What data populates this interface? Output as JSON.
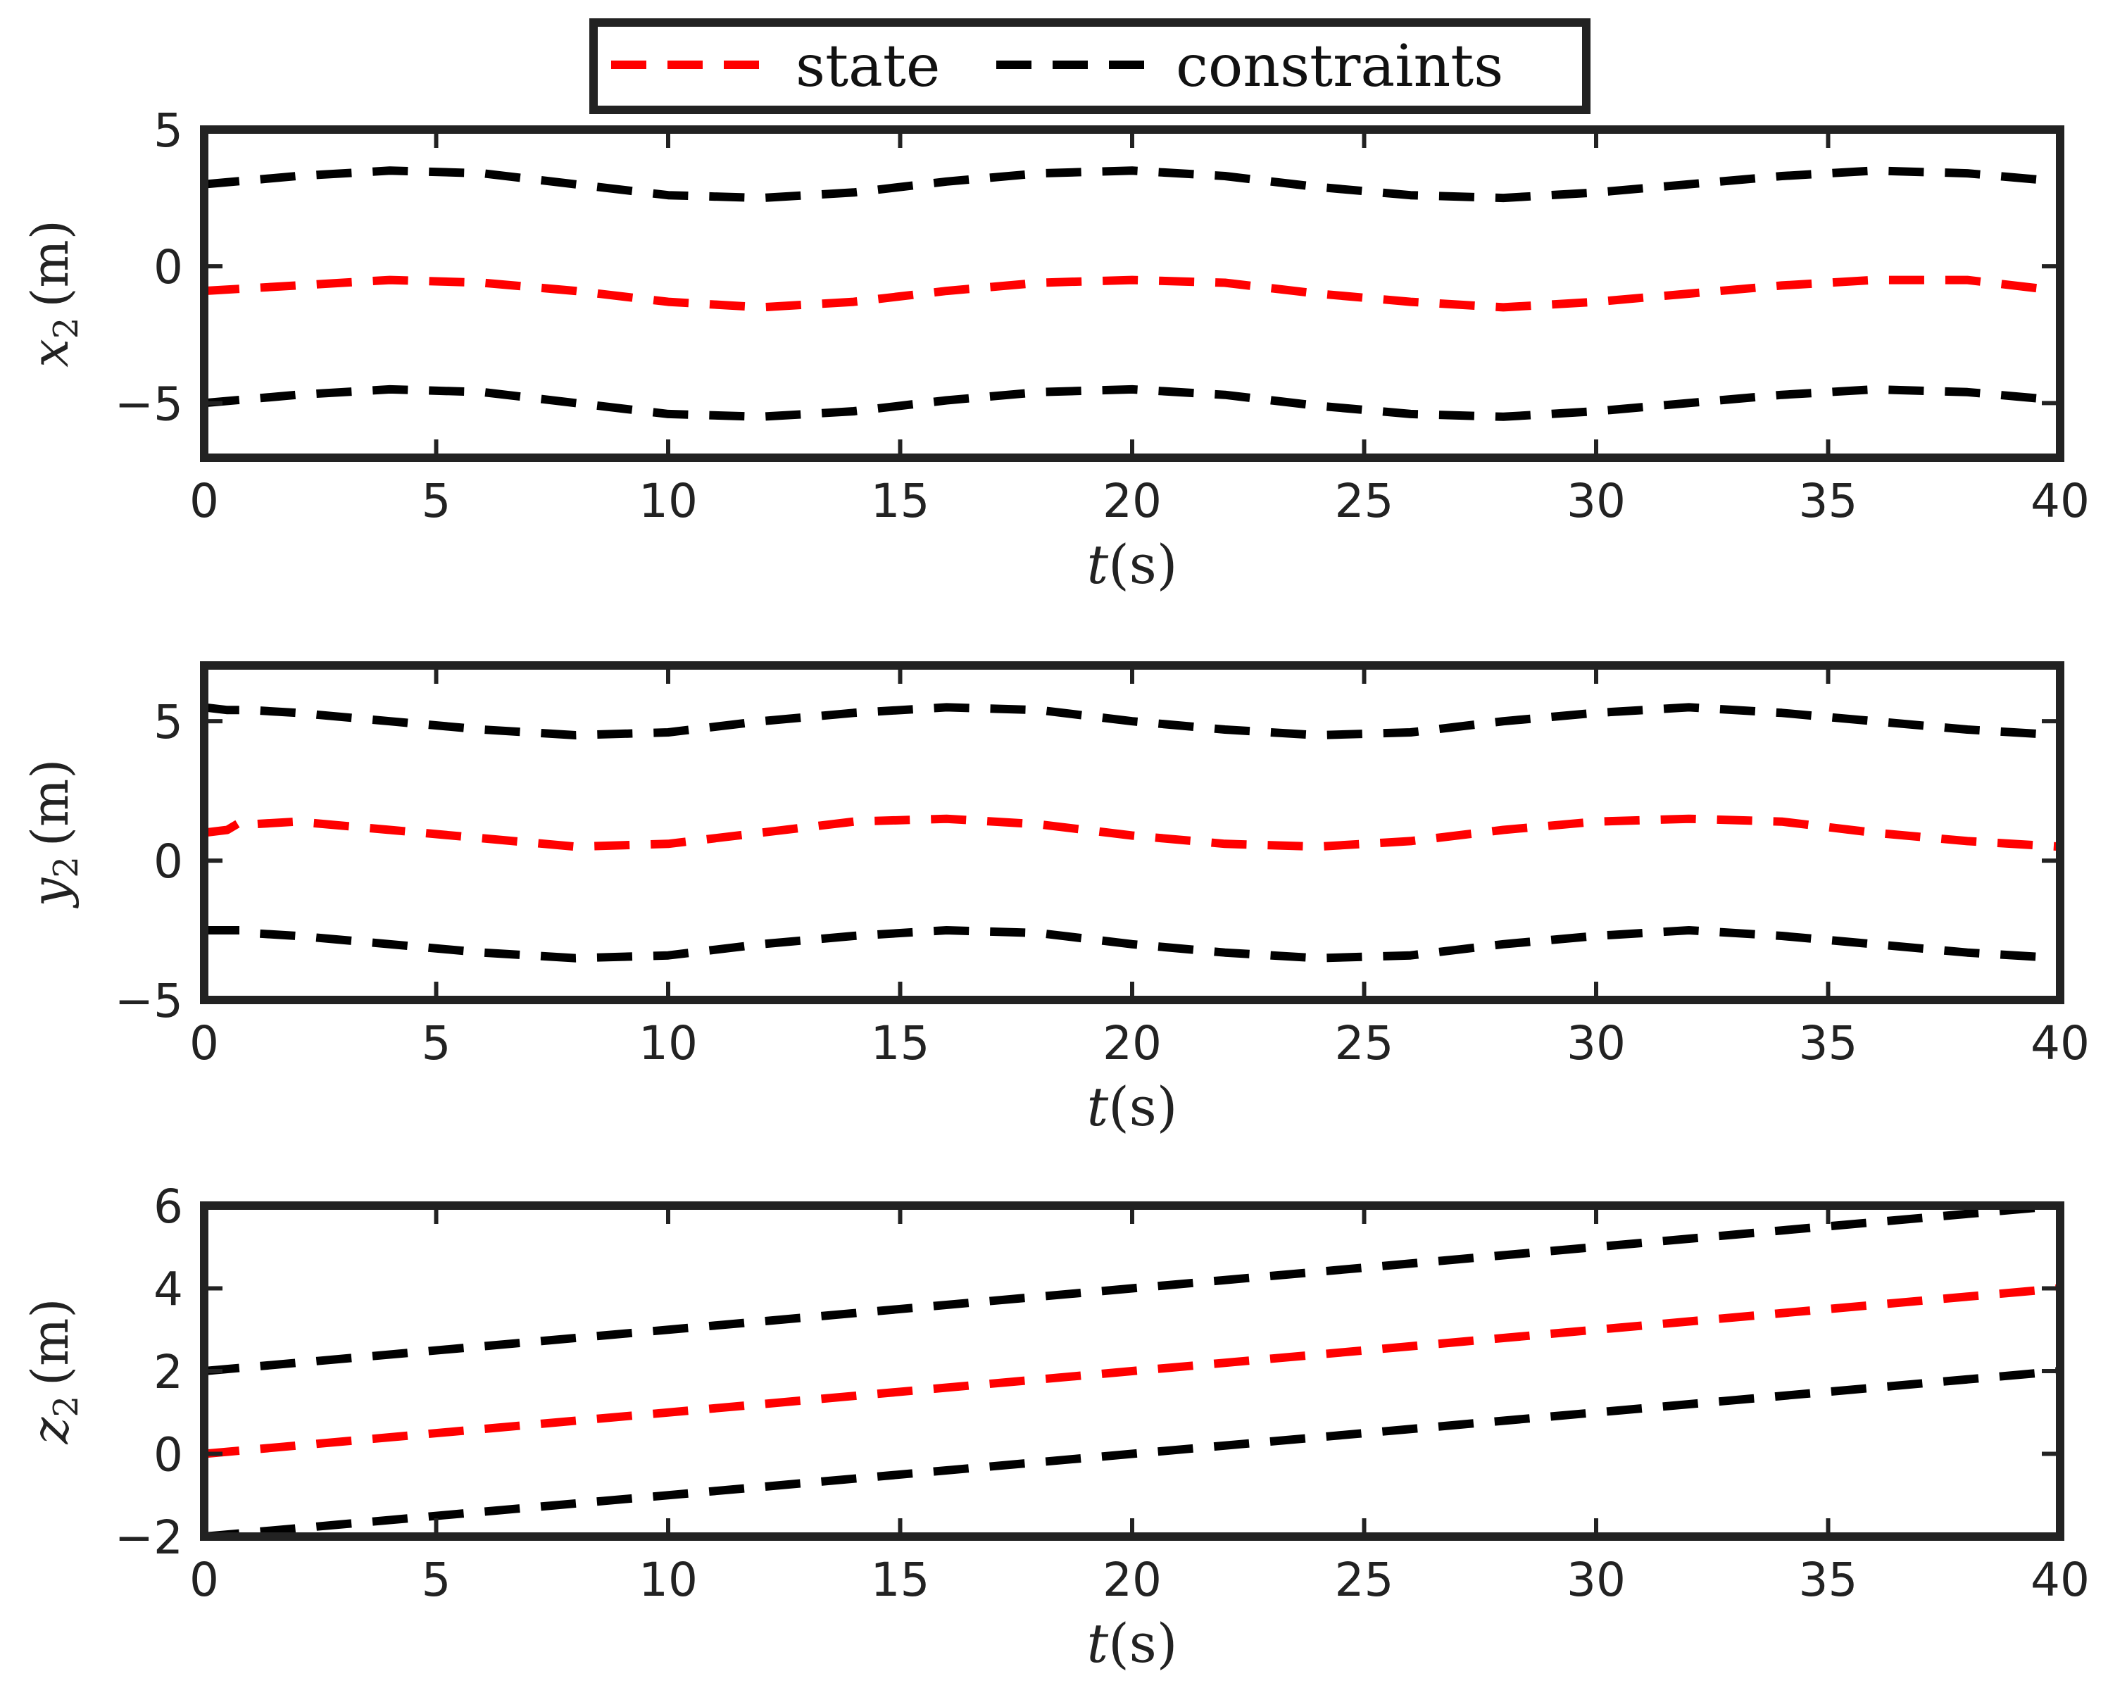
{
  "legend": {
    "state_label": "state",
    "constraints_label": "constraints",
    "state_color": "#ff0000",
    "constraints_color": "#000000"
  },
  "chart_data": [
    {
      "type": "line",
      "ylabel_var": "x",
      "ylabel_sub": "2",
      "ylabel_unit": "(m)",
      "xlabel_var": "t",
      "xlabel_unit": "(s)",
      "xlim": [
        0,
        40
      ],
      "ylim": [
        -7,
        5
      ],
      "xticks": [
        0,
        5,
        10,
        15,
        20,
        25,
        30,
        35,
        40
      ],
      "yticks": [
        -5,
        0,
        5
      ],
      "ytick_labels": [
        "−5",
        "0",
        "5"
      ],
      "x": [
        0,
        2,
        4,
        6,
        8,
        10,
        12,
        14,
        16,
        18,
        20,
        22,
        24,
        26,
        28,
        30,
        32,
        34,
        36,
        38,
        40
      ],
      "series": [
        {
          "name": "state",
          "values": [
            -0.9,
            -0.7,
            -0.5,
            -0.6,
            -0.9,
            -1.3,
            -1.5,
            -1.3,
            -0.9,
            -0.6,
            -0.5,
            -0.6,
            -1.0,
            -1.3,
            -1.5,
            -1.3,
            -1.0,
            -0.7,
            -0.5,
            -0.5,
            -0.9
          ]
        },
        {
          "name": "constraints",
          "values": [
            3.0,
            3.3,
            3.5,
            3.4,
            3.0,
            2.6,
            2.5,
            2.7,
            3.1,
            3.4,
            3.5,
            3.3,
            2.9,
            2.6,
            2.5,
            2.7,
            3.0,
            3.3,
            3.5,
            3.4,
            3.1
          ]
        },
        {
          "name": "constraints",
          "values": [
            -5.0,
            -4.7,
            -4.5,
            -4.6,
            -5.0,
            -5.4,
            -5.5,
            -5.3,
            -4.9,
            -4.6,
            -4.5,
            -4.7,
            -5.1,
            -5.4,
            -5.5,
            -5.3,
            -5.0,
            -4.7,
            -4.5,
            -4.6,
            -4.9
          ]
        }
      ]
    },
    {
      "type": "line",
      "ylabel_var": "y",
      "ylabel_sub": "2",
      "ylabel_unit": "(m)",
      "xlabel_var": "t",
      "xlabel_unit": "(s)",
      "xlim": [
        0,
        40
      ],
      "ylim": [
        -5,
        7
      ],
      "xticks": [
        0,
        5,
        10,
        15,
        20,
        25,
        30,
        35,
        40
      ],
      "yticks": [
        -5,
        0,
        5
      ],
      "ytick_labels": [
        "−5",
        "0",
        "5"
      ],
      "x": [
        0,
        0.5,
        0.8,
        1.0,
        2,
        4,
        6,
        8,
        10,
        12,
        14,
        16,
        18,
        20,
        22,
        24,
        26,
        28,
        30,
        32,
        34,
        36,
        38,
        40
      ],
      "series": [
        {
          "name": "state",
          "values": [
            1.0,
            1.1,
            1.4,
            1.3,
            1.4,
            1.1,
            0.8,
            0.5,
            0.6,
            1.0,
            1.4,
            1.5,
            1.3,
            0.9,
            0.6,
            0.5,
            0.7,
            1.1,
            1.4,
            1.5,
            1.4,
            1.0,
            0.7,
            0.5
          ]
        },
        {
          "name": "constraints",
          "values": [
            5.5,
            5.4,
            5.4,
            5.4,
            5.3,
            5.0,
            4.7,
            4.5,
            4.6,
            5.0,
            5.3,
            5.5,
            5.4,
            5.0,
            4.7,
            4.5,
            4.6,
            5.0,
            5.3,
            5.5,
            5.3,
            5.0,
            4.7,
            4.5
          ]
        },
        {
          "name": "constraints",
          "values": [
            -2.5,
            -2.5,
            -2.5,
            -2.6,
            -2.7,
            -3.0,
            -3.3,
            -3.5,
            -3.4,
            -3.0,
            -2.7,
            -2.5,
            -2.6,
            -3.0,
            -3.3,
            -3.5,
            -3.4,
            -3.0,
            -2.7,
            -2.5,
            -2.7,
            -3.0,
            -3.3,
            -3.5
          ]
        }
      ]
    },
    {
      "type": "line",
      "ylabel_var": "z",
      "ylabel_sub": "2",
      "ylabel_unit": "(m)",
      "xlabel_var": "t",
      "xlabel_unit": "(s)",
      "xlim": [
        0,
        40
      ],
      "ylim": [
        -2,
        6
      ],
      "xticks": [
        0,
        5,
        10,
        15,
        20,
        25,
        30,
        35,
        40
      ],
      "yticks": [
        -2,
        0,
        2,
        4,
        6
      ],
      "ytick_labels": [
        "−2",
        "0",
        "2",
        "4",
        "6"
      ],
      "x": [
        0,
        40
      ],
      "series": [
        {
          "name": "state",
          "values": [
            0,
            4
          ]
        },
        {
          "name": "constraints",
          "values": [
            2,
            6
          ]
        },
        {
          "name": "constraints",
          "values": [
            -2,
            2
          ]
        }
      ]
    }
  ]
}
